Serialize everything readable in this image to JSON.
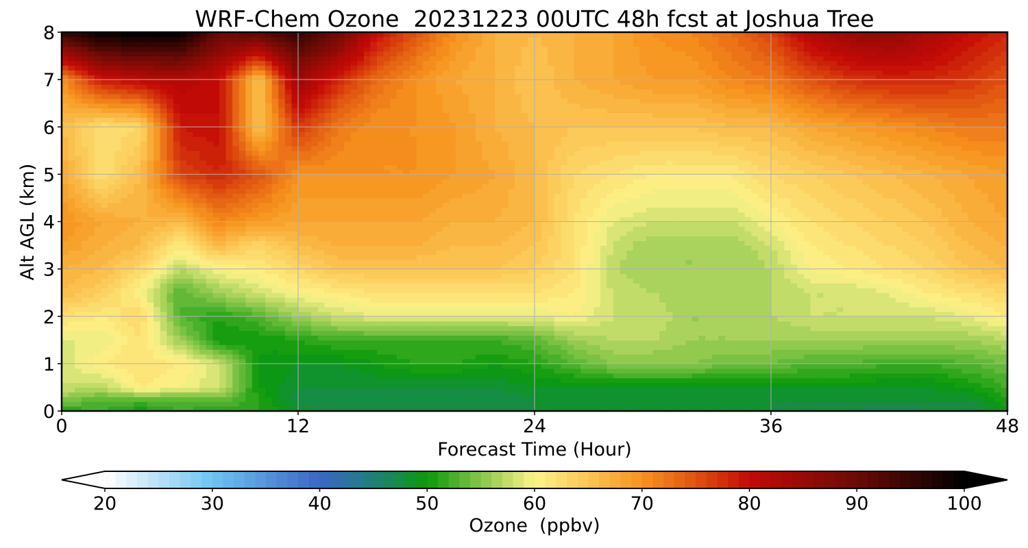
{
  "chart_data": {
    "type": "heatmap",
    "title": "WRF-Chem Ozone  20231223 00UTC 48h fcst at Joshua Tree",
    "xlabel": "Forecast Time (Hour)",
    "ylabel": "Alt AGL (km)",
    "xlim": [
      0,
      48
    ],
    "ylim": [
      0,
      8
    ],
    "x_ticks": [
      0,
      12,
      24,
      36,
      48
    ],
    "y_ticks": [
      0,
      1,
      2,
      3,
      4,
      5,
      6,
      7,
      8
    ],
    "grid": true,
    "colorbar": {
      "label": "Ozone  (ppbv)",
      "min": 20,
      "max": 100,
      "step": 1,
      "extend": "both",
      "ticks": [
        20,
        30,
        40,
        50,
        60,
        70,
        80,
        90,
        100
      ],
      "color_stops": [
        {
          "value": 20,
          "color": "#ffffff"
        },
        {
          "value": 30,
          "color": "#6ec4f2"
        },
        {
          "value": 40,
          "color": "#3a66c4"
        },
        {
          "value": 45,
          "color": "#1f7f7a"
        },
        {
          "value": 50,
          "color": "#0a9a0a"
        },
        {
          "value": 55,
          "color": "#86c64a"
        },
        {
          "value": 60,
          "color": "#fdf28a"
        },
        {
          "value": 65,
          "color": "#fbc552"
        },
        {
          "value": 70,
          "color": "#f7931e"
        },
        {
          "value": 75,
          "color": "#e0520f"
        },
        {
          "value": 80,
          "color": "#c40a06"
        },
        {
          "value": 90,
          "color": "#6a0b05"
        },
        {
          "value": 100,
          "color": "#000000"
        }
      ]
    },
    "heights_km": [
      0,
      0.25,
      0.5,
      1,
      1.5,
      2,
      2.5,
      3,
      3.5,
      4,
      5,
      6,
      7,
      8
    ],
    "times_h": [
      0,
      2,
      4,
      6,
      8,
      10,
      12,
      14,
      16,
      18,
      20,
      22,
      24,
      26,
      28,
      30,
      32,
      34,
      36,
      38,
      40,
      42,
      44,
      46,
      48
    ],
    "ozone_ppbv": [
      [
        51,
        52,
        50,
        52,
        51,
        51,
        49,
        47,
        47,
        47,
        48,
        48,
        48,
        48,
        48,
        48,
        48,
        48,
        48,
        47,
        47,
        46,
        47,
        47,
        50
      ],
      [
        55,
        53,
        53,
        53,
        54,
        51,
        47,
        47,
        47,
        47,
        47,
        47,
        48,
        48,
        48,
        48,
        48,
        48,
        48,
        48,
        48,
        48,
        48,
        48,
        51
      ],
      [
        58,
        57,
        61,
        60,
        58,
        50,
        48,
        48,
        48,
        48,
        48,
        48,
        49,
        49,
        49,
        49,
        49,
        49,
        49,
        49,
        49,
        49,
        49,
        50,
        52
      ],
      [
        58,
        61,
        62,
        61,
        58,
        50,
        49,
        49,
        50,
        51,
        51,
        50,
        51,
        53,
        55,
        55,
        55,
        54,
        54,
        53,
        53,
        52,
        52,
        53,
        54
      ],
      [
        59,
        59,
        62,
        56,
        50,
        50,
        51,
        52,
        52,
        52,
        52,
        52,
        53,
        56,
        57,
        57,
        56,
        56,
        56,
        56,
        56,
        56,
        56,
        56,
        57
      ],
      [
        62,
        61,
        63,
        53,
        51,
        53,
        56,
        58,
        59,
        59,
        59,
        59,
        59,
        60,
        58,
        58,
        56,
        56,
        57,
        58,
        58,
        58,
        58,
        59,
        61
      ],
      [
        66,
        64,
        60,
        53,
        56,
        58,
        60,
        61,
        62,
        62,
        62,
        62,
        62,
        61,
        58,
        57,
        56,
        56,
        57,
        58,
        58,
        59,
        61,
        62,
        63
      ],
      [
        67,
        66,
        63,
        57,
        60,
        61,
        63,
        65,
        65,
        65,
        65,
        65,
        64,
        62,
        57,
        56,
        56,
        56,
        57,
        60,
        61,
        62,
        63,
        65,
        66
      ],
      [
        69,
        67,
        66,
        61,
        66,
        63,
        66,
        67,
        67,
        67,
        66,
        66,
        65,
        62,
        58,
        56,
        56,
        56,
        58,
        61,
        62,
        63,
        64,
        66,
        67
      ],
      [
        70,
        68,
        67,
        66,
        71,
        69,
        68,
        68,
        68,
        68,
        67,
        67,
        66,
        62,
        59,
        58,
        58,
        58,
        60,
        62,
        63,
        64,
        65,
        67,
        68
      ],
      [
        68,
        62,
        66,
        76,
        78,
        75,
        70,
        70,
        70,
        70,
        69,
        68,
        66,
        63,
        62,
        61,
        61,
        61,
        63,
        64,
        65,
        66,
        67,
        68,
        69
      ],
      [
        66,
        62,
        63,
        79,
        80,
        65,
        77,
        72,
        70,
        70,
        69,
        67,
        66,
        65,
        65,
        65,
        65,
        66,
        66,
        68,
        69,
        70,
        71,
        72,
        72
      ],
      [
        70,
        79,
        81,
        82,
        80,
        65,
        85,
        78,
        73,
        70,
        68,
        67,
        65,
        67,
        68,
        69,
        69,
        71,
        72,
        75,
        77,
        78,
        78,
        77,
        75
      ],
      [
        95,
        100,
        100,
        100,
        90,
        92,
        95,
        90,
        80,
        75,
        70,
        67,
        66,
        67,
        68,
        70,
        71,
        73,
        76,
        82,
        85,
        86,
        83,
        80,
        78
      ]
    ]
  }
}
